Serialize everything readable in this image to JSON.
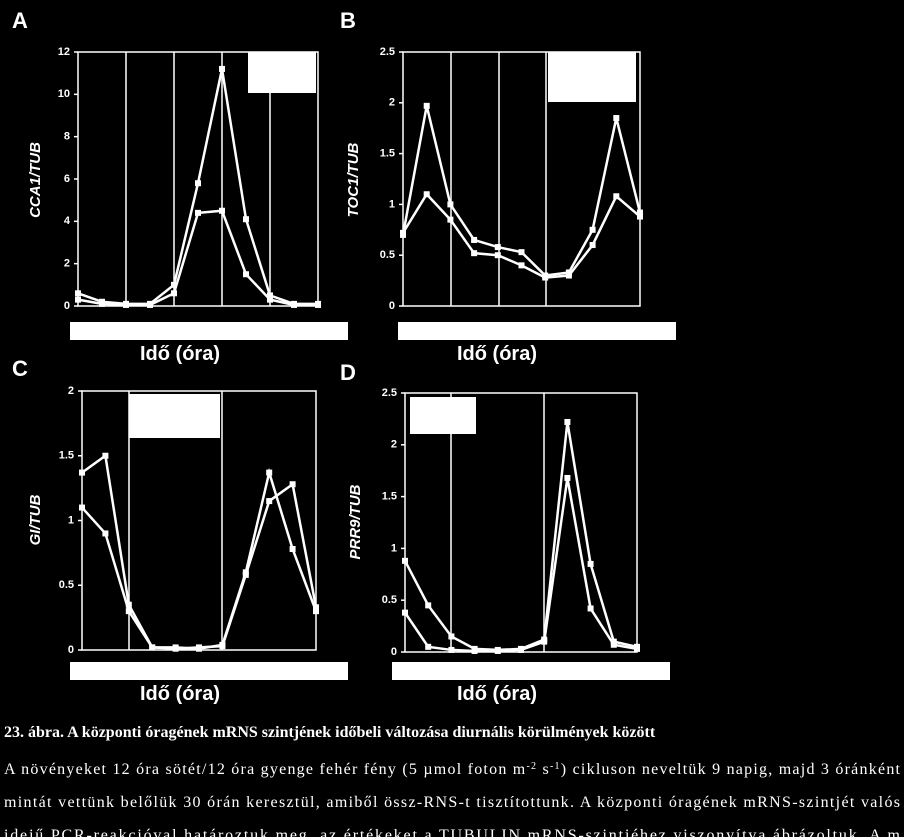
{
  "chart_data": [
    {
      "type": "line",
      "panel": "A",
      "ylabel": "CCA1/TUB",
      "xlabel": "Idő (óra)",
      "ylim": [
        0,
        12
      ],
      "yticks": [
        0,
        2,
        4,
        6,
        8,
        10,
        12
      ],
      "series": [
        {
          "color": "#ffffff",
          "values": [
            0.6,
            0.2,
            0.1,
            0.1,
            1.0,
            5.8,
            11.2,
            4.1,
            0.5,
            0.1,
            0.1
          ]
        },
        {
          "color": "#ffffff",
          "values": [
            0.3,
            0.1,
            0.05,
            0.05,
            0.6,
            4.4,
            4.5,
            1.5,
            0.3,
            0.05,
            0.05
          ]
        }
      ]
    },
    {
      "type": "line",
      "panel": "B",
      "ylabel": "TOC1/TUB",
      "xlabel": "Idő (óra)",
      "ylim": [
        0,
        2.5
      ],
      "yticks": [
        0,
        0.5,
        1,
        1.5,
        2,
        2.5
      ],
      "series": [
        {
          "color": "#ffffff",
          "values": [
            0.7,
            1.97,
            1.0,
            0.65,
            0.58,
            0.53,
            0.3,
            0.33,
            0.75,
            1.85,
            0.92
          ]
        },
        {
          "color": "#ffffff",
          "values": [
            0.72,
            1.1,
            0.85,
            0.52,
            0.5,
            0.4,
            0.28,
            0.3,
            0.6,
            1.08,
            0.88
          ]
        }
      ]
    },
    {
      "type": "line",
      "panel": "C",
      "ylabel": "GI/TUB",
      "xlabel": "Idő (óra)",
      "ylim": [
        0,
        2
      ],
      "yticks": [
        0,
        0.5,
        1,
        1.5,
        2
      ],
      "series": [
        {
          "color": "#ffffff",
          "values": [
            1.37,
            1.5,
            0.35,
            0.02,
            0.02,
            0.01,
            0.04,
            0.6,
            1.37,
            0.78,
            0.3
          ]
        },
        {
          "color": "#ffffff",
          "values": [
            1.1,
            0.9,
            0.3,
            0.02,
            0.01,
            0.02,
            0.03,
            0.58,
            1.15,
            1.28,
            0.33
          ]
        }
      ]
    },
    {
      "type": "line",
      "panel": "D",
      "ylabel": "PRR9/TUB",
      "xlabel": "Idő (óra)",
      "ylim": [
        0,
        2.5
      ],
      "yticks": [
        0,
        0.5,
        1,
        1.5,
        2,
        2.5
      ],
      "series": [
        {
          "color": "#ffffff",
          "values": [
            0.88,
            0.45,
            0.15,
            0.03,
            0.02,
            0.03,
            0.12,
            2.22,
            0.85,
            0.1,
            0.05
          ]
        },
        {
          "color": "#ffffff",
          "values": [
            0.38,
            0.05,
            0.02,
            0.01,
            0.01,
            0.02,
            0.1,
            1.68,
            0.42,
            0.07,
            0.03
          ]
        }
      ]
    }
  ],
  "caption": {
    "title": "23. ábra.  A központi óragének mRNS szintjének időbeli változása diurnális körülmények között",
    "lines": [
      [
        "A növényeket 12 óra sötét/12 óra gyenge fehér fény (5 µmol foton m",
        "-2",
        " s",
        "-1",
        ") cikluson neveltük 9 napig, majd 3 óránként"
      ],
      [
        "mintát vettünk belőlük 30 órán keresztül, amiből össz-RNS-t tisztítottunk. A központi óragének mRNS-szintjét valós"
      ],
      [
        "idejű PCR-reakcióval határoztuk meg, az értékeket a TUBULIN mRNS-szintjéhez viszonyítva ábrázoltuk. A m"
      ]
    ]
  }
}
